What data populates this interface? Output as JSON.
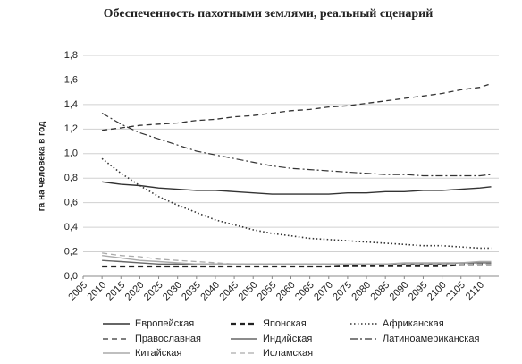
{
  "chart_data": {
    "type": "line",
    "title": "Обеспеченность пахотными землями, реальный сценарий",
    "y_label": "га на человека в год",
    "x": [
      2010,
      2015,
      2020,
      2025,
      2030,
      2035,
      2040,
      2045,
      2050,
      2055,
      2060,
      2065,
      2070,
      2075,
      2080,
      2085,
      2090,
      2095,
      2100,
      2105,
      2110,
      2113
    ],
    "xlim": [
      2005,
      2115
    ],
    "xticks": [
      2005,
      2010,
      2015,
      2020,
      2025,
      2030,
      2035,
      2040,
      2045,
      2050,
      2055,
      2060,
      2065,
      2070,
      2075,
      2080,
      2085,
      2090,
      2095,
      2100,
      2105,
      2110
    ],
    "ylim": [
      0,
      1.8
    ],
    "yticks": [
      {
        "value": 0,
        "label": "0,0"
      },
      {
        "value": 0.2,
        "label": "0,2"
      },
      {
        "value": 0.4,
        "label": "0,4"
      },
      {
        "value": 0.6,
        "label": "0,6"
      },
      {
        "value": 0.8,
        "label": "0,8"
      },
      {
        "value": 1,
        "label": "1,0"
      },
      {
        "value": 1.2,
        "label": "1,2"
      },
      {
        "value": 1.4,
        "label": "1,4"
      },
      {
        "value": 1.6,
        "label": "1,6"
      },
      {
        "value": 1.8,
        "label": "1,8"
      }
    ],
    "grid": true,
    "legend": "bottom",
    "series": [
      {
        "name": "Европейская",
        "color": "#333333",
        "style": "solid",
        "values": [
          0.77,
          0.75,
          0.74,
          0.72,
          0.71,
          0.7,
          0.7,
          0.69,
          0.68,
          0.67,
          0.67,
          0.67,
          0.67,
          0.68,
          0.68,
          0.69,
          0.69,
          0.7,
          0.7,
          0.71,
          0.72,
          0.73
        ]
      },
      {
        "name": "Японская",
        "color": "#222222",
        "style": "bold-dashed",
        "values": [
          0.08,
          0.08,
          0.08,
          0.08,
          0.08,
          0.08,
          0.08,
          0.08,
          0.08,
          0.08,
          0.08,
          0.08,
          0.08,
          0.09,
          0.09,
          0.09,
          0.09,
          0.09,
          0.09,
          0.1,
          0.1,
          0.1
        ]
      },
      {
        "name": "Африканская",
        "color": "#333333",
        "style": "dotted",
        "values": [
          0.96,
          0.84,
          0.74,
          0.65,
          0.58,
          0.52,
          0.46,
          0.42,
          0.38,
          0.35,
          0.33,
          0.31,
          0.3,
          0.29,
          0.28,
          0.27,
          0.26,
          0.25,
          0.25,
          0.24,
          0.23,
          0.23
        ]
      },
      {
        "name": "Православная",
        "color": "#333333",
        "style": "dashed",
        "values": [
          1.19,
          1.21,
          1.23,
          1.24,
          1.25,
          1.27,
          1.28,
          1.3,
          1.31,
          1.33,
          1.35,
          1.36,
          1.38,
          1.39,
          1.41,
          1.43,
          1.45,
          1.47,
          1.49,
          1.52,
          1.54,
          1.57
        ]
      },
      {
        "name": "Индийская",
        "color": "#666666",
        "style": "solid",
        "values": [
          0.13,
          0.12,
          0.11,
          0.1,
          0.1,
          0.1,
          0.1,
          0.1,
          0.1,
          0.1,
          0.1,
          0.1,
          0.1,
          0.1,
          0.1,
          0.1,
          0.1,
          0.1,
          0.1,
          0.11,
          0.11,
          0.11
        ]
      },
      {
        "name": "Латиноамериканская",
        "color": "#333333",
        "style": "dashdot",
        "values": [
          1.33,
          1.24,
          1.17,
          1.12,
          1.07,
          1.02,
          0.99,
          0.96,
          0.93,
          0.9,
          0.88,
          0.87,
          0.86,
          0.85,
          0.84,
          0.83,
          0.83,
          0.82,
          0.82,
          0.82,
          0.82,
          0.83
        ]
      },
      {
        "name": "Китайская",
        "color": "#aaaaaa",
        "style": "solid",
        "values": [
          0.17,
          0.15,
          0.13,
          0.12,
          0.11,
          0.1,
          0.1,
          0.1,
          0.1,
          0.1,
          0.1,
          0.1,
          0.1,
          0.1,
          0.1,
          0.1,
          0.11,
          0.11,
          0.11,
          0.11,
          0.12,
          0.12
        ]
      },
      {
        "name": "Исламская",
        "color": "#aaaaaa",
        "style": "dashed",
        "values": [
          0.19,
          0.17,
          0.16,
          0.14,
          0.13,
          0.12,
          0.11,
          0.1,
          0.1,
          0.1,
          0.1,
          0.1,
          0.1,
          0.1,
          0.1,
          0.1,
          0.1,
          0.1,
          0.1,
          0.1,
          0.1,
          0.1
        ]
      }
    ]
  }
}
